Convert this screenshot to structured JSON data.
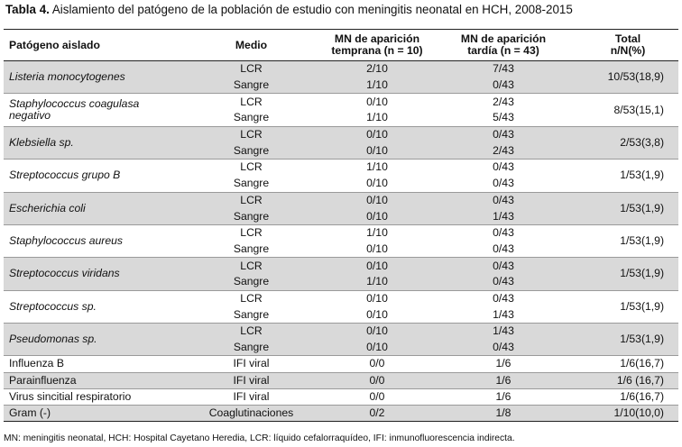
{
  "caption": {
    "label": "Tabla 4.",
    "text": " Aislamiento del patógeno de la población de estudio con meningitis neonatal en HCH, 2008-2015"
  },
  "headers": {
    "pathogen": "Patógeno aislado",
    "medium": "Medio",
    "early_line1": "MN de aparición",
    "early_line2": "temprana (n = 10)",
    "late_line1": "MN de aparición",
    "late_line2": "tardía (n = 43)",
    "total_line1": "Total",
    "total_line2": "n/N(%)"
  },
  "groups": [
    {
      "pathogen_lines": [
        "Listeria monocytogenes"
      ],
      "italic": true,
      "shaded": true,
      "total": "10/53(18,9)",
      "rows": [
        {
          "medium": "LCR",
          "early": "2/10",
          "late": "7/43"
        },
        {
          "medium": "Sangre",
          "early": "1/10",
          "late": "0/43"
        }
      ]
    },
    {
      "pathogen_lines": [
        "Staphylococcus coagulasa",
        "negativo"
      ],
      "italic": true,
      "shaded": false,
      "total": "8/53(15,1)",
      "rows": [
        {
          "medium": "LCR",
          "early": "0/10",
          "late": "2/43"
        },
        {
          "medium": "Sangre",
          "early": "1/10",
          "late": "5/43"
        }
      ]
    },
    {
      "pathogen_lines": [
        "Klebsiella sp."
      ],
      "italic": true,
      "shaded": true,
      "total": "2/53(3,8)",
      "rows": [
        {
          "medium": "LCR",
          "early": "0/10",
          "late": "0/43"
        },
        {
          "medium": "Sangre",
          "early": "0/10",
          "late": "2/43"
        }
      ]
    },
    {
      "pathogen_lines": [
        "Streptococcus grupo B"
      ],
      "italic": true,
      "shaded": false,
      "total": "1/53(1,9)",
      "rows": [
        {
          "medium": "LCR",
          "early": "1/10",
          "late": "0/43"
        },
        {
          "medium": "Sangre",
          "early": "0/10",
          "late": "0/43"
        }
      ]
    },
    {
      "pathogen_lines": [
        "Escherichia coli"
      ],
      "italic": true,
      "shaded": true,
      "total": "1/53(1,9)",
      "rows": [
        {
          "medium": "LCR",
          "early": "0/10",
          "late": "0/43"
        },
        {
          "medium": "Sangre",
          "early": "0/10",
          "late": "1/43"
        }
      ]
    },
    {
      "pathogen_lines": [
        "Staphylococcus aureus"
      ],
      "italic": true,
      "shaded": false,
      "total": "1/53(1,9)",
      "rows": [
        {
          "medium": "LCR",
          "early": "1/10",
          "late": "0/43"
        },
        {
          "medium": "Sangre",
          "early": "0/10",
          "late": "0/43"
        }
      ]
    },
    {
      "pathogen_lines": [
        "Streptococcus viridans"
      ],
      "italic": true,
      "shaded": true,
      "total": "1/53(1,9)",
      "rows": [
        {
          "medium": "LCR",
          "early": "0/10",
          "late": "0/43"
        },
        {
          "medium": "Sangre",
          "early": "1/10",
          "late": "0/43"
        }
      ]
    },
    {
      "pathogen_lines": [
        "Streptococcus sp."
      ],
      "italic": true,
      "shaded": false,
      "total": "1/53(1,9)",
      "rows": [
        {
          "medium": "LCR",
          "early": "0/10",
          "late": "0/43"
        },
        {
          "medium": "Sangre",
          "early": "0/10",
          "late": "1/43"
        }
      ]
    },
    {
      "pathogen_lines": [
        "Pseudomonas sp."
      ],
      "italic": true,
      "shaded": true,
      "total": "1/53(1,9)",
      "rows": [
        {
          "medium": "LCR",
          "early": "0/10",
          "late": "1/43"
        },
        {
          "medium": "Sangre",
          "early": "0/10",
          "late": "0/43"
        }
      ]
    }
  ],
  "singles": [
    {
      "pathogen": "Influenza B",
      "medium": "IFI viral",
      "early": "0/0",
      "late": "1/6",
      "total": "1/6(16,7)",
      "shaded": false
    },
    {
      "pathogen": "Parainfluenza",
      "medium": "IFI viral",
      "early": "0/0",
      "late": "1/6",
      "total": "1/6 (16,7)",
      "shaded": true
    },
    {
      "pathogen": "Virus sincitial respiratorio",
      "medium": "IFI viral",
      "early": "0/0",
      "late": "1/6",
      "total": "1/6(16,7)",
      "shaded": false
    },
    {
      "pathogen": "Gram (-)",
      "medium": "Coaglutinaciones",
      "early": "0/2",
      "late": "1/8",
      "total": "1/10(10,0)",
      "shaded": true
    }
  ],
  "colors": {
    "shade": "#d9d9d9",
    "rule": "#222222"
  },
  "footnote": "MN: meningitis neonatal, HCH: Hospital Cayetano Heredia, LCR: líquido cefalorraquídeo, IFI: inmunofluorescencia indirecta."
}
